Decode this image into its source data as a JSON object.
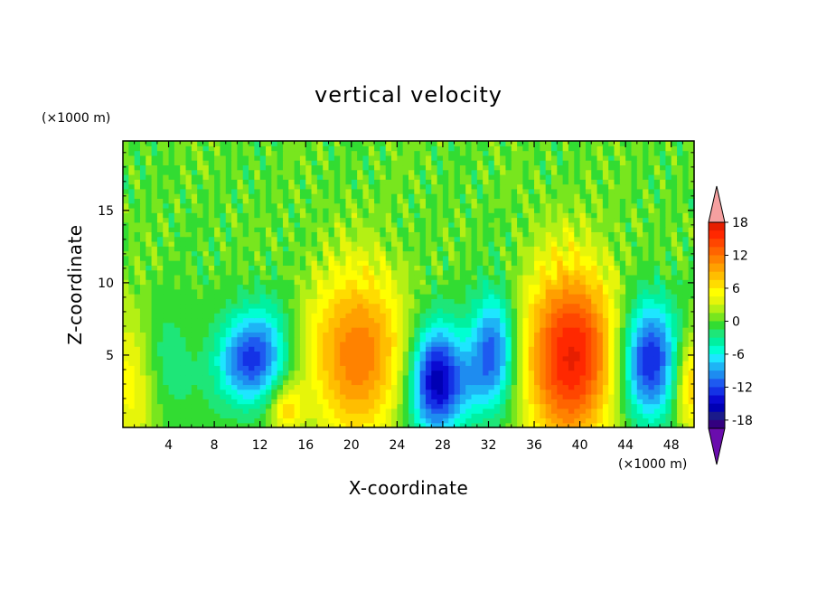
{
  "chart_data": {
    "type": "heatmap",
    "title": "vertical velocity",
    "xlabel": "X-coordinate",
    "ylabel": "Z-coordinate",
    "x_unit": "(×1000 m)",
    "y_unit": "(×1000 m)",
    "xlim": [
      0,
      50
    ],
    "ylim": [
      0,
      19.8
    ],
    "x_ticks": [
      4,
      8,
      12,
      16,
      20,
      24,
      28,
      32,
      36,
      40,
      44,
      48
    ],
    "y_ticks": [
      5,
      10,
      15
    ],
    "colorbar": {
      "levels": [
        -21,
        -19.5,
        -18,
        -16.5,
        -15,
        -13.5,
        -12,
        -10.5,
        -9,
        -7.5,
        -6,
        -4.5,
        -3,
        -1.5,
        0,
        1.5,
        3,
        4.5,
        6,
        7.5,
        9,
        10.5,
        12,
        13.5,
        15,
        16.5,
        18,
        19.5
      ],
      "colors": [
        "#6a0dad",
        "#33007f",
        "#1a1a8a",
        "#0000b4",
        "#0a0ad2",
        "#1432e6",
        "#1e5af0",
        "#1e8cf0",
        "#1eb4f5",
        "#1ee6ff",
        "#00ffd2",
        "#00f0a0",
        "#1ee678",
        "#32dc32",
        "#78e61e",
        "#b4f014",
        "#e6f50a",
        "#ffff00",
        "#ffdc00",
        "#ffbe00",
        "#ffa000",
        "#ff8200",
        "#ff6400",
        "#ff4600",
        "#ff2800",
        "#e61e00",
        "#f5a0a0"
      ],
      "tick_labels": [
        "18",
        "12",
        "6",
        "0",
        "-6",
        "-12",
        "-18"
      ],
      "tick_values": [
        18,
        12,
        6,
        0,
        -6,
        -12,
        -18
      ],
      "extend": "both"
    },
    "features": [
      {
        "x": 0.8,
        "z": 3.5,
        "amp": 6.0,
        "sx": 1.6,
        "sz": 3.5
      },
      {
        "x": 3.5,
        "z": 4.5,
        "amp": -3.0,
        "sx": 2.0,
        "sz": 3.0
      },
      {
        "x": 10.8,
        "z": 4.6,
        "amp": -11.0,
        "sx": 1.9,
        "sz": 2.2
      },
      {
        "x": 13.0,
        "z": 6.0,
        "amp": -4.0,
        "sx": 1.5,
        "sz": 2.5
      },
      {
        "x": 14.3,
        "z": 1.3,
        "amp": 7.0,
        "sx": 1.0,
        "sz": 1.2
      },
      {
        "x": 20.5,
        "z": 5.2,
        "amp": 12.0,
        "sx": 3.0,
        "sz": 4.2
      },
      {
        "x": 27.3,
        "z": 3.3,
        "amp": -15.0,
        "sx": 1.6,
        "sz": 2.8
      },
      {
        "x": 32.5,
        "z": 5.8,
        "amp": -11.0,
        "sx": 1.4,
        "sz": 2.6
      },
      {
        "x": 30.5,
        "z": 3.0,
        "amp": -5.0,
        "sx": 2.0,
        "sz": 2.0
      },
      {
        "x": 39.2,
        "z": 5.0,
        "amp": 17.0,
        "sx": 2.9,
        "sz": 4.5
      },
      {
        "x": 46.0,
        "z": 4.6,
        "amp": -14.0,
        "sx": 1.8,
        "sz": 3.0
      },
      {
        "x": 49.7,
        "z": 3.0,
        "amp": 8.0,
        "sx": 1.0,
        "sz": 2.5
      }
    ]
  }
}
